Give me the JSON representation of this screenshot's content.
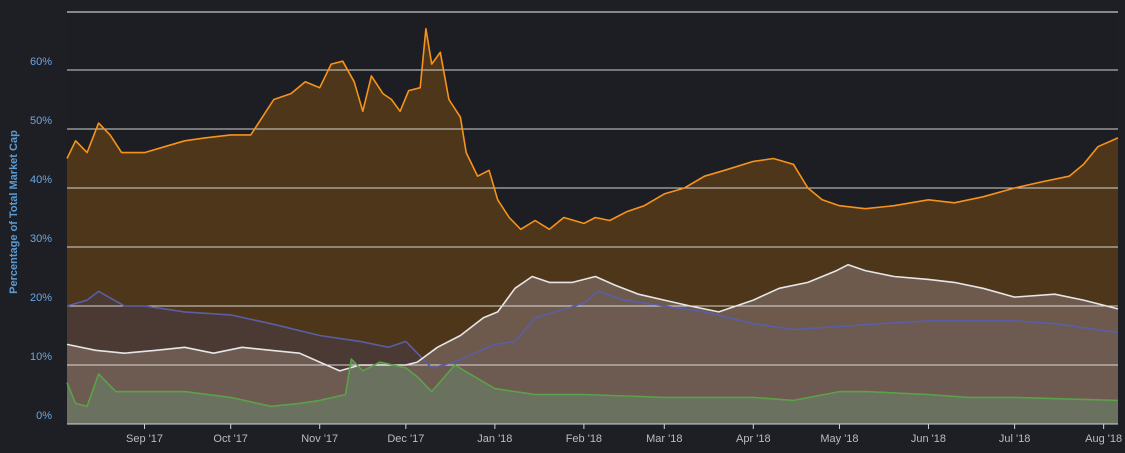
{
  "chart_data": {
    "type": "area",
    "ylabel": "Percentage of Total Market Cap",
    "ylim": [
      0,
      70
    ],
    "y_ticks": [
      "0%",
      "10%",
      "20%",
      "30%",
      "40%",
      "50%",
      "60%"
    ],
    "y_tick_values": [
      0,
      10,
      20,
      30,
      40,
      50,
      60
    ],
    "x_range": [
      "2017-08-05",
      "2018-08-06"
    ],
    "x_ticks": [
      {
        "label": "Sep '17",
        "date": "2017-09-01"
      },
      {
        "label": "Oct '17",
        "date": "2017-10-01"
      },
      {
        "label": "Nov '17",
        "date": "2017-11-01"
      },
      {
        "label": "Dec '17",
        "date": "2017-12-01"
      },
      {
        "label": "Jan '18",
        "date": "2018-01-01"
      },
      {
        "label": "Feb '18",
        "date": "2018-02-01"
      },
      {
        "label": "Mar '18",
        "date": "2018-03-01"
      },
      {
        "label": "Apr '18",
        "date": "2018-04-01"
      },
      {
        "label": "May '18",
        "date": "2018-05-01"
      },
      {
        "label": "Jun '18",
        "date": "2018-06-01"
      },
      {
        "label": "Jul '18",
        "date": "2018-07-01"
      },
      {
        "label": "Aug '18",
        "date": "2018-08-01"
      }
    ],
    "grid": true,
    "legend": "none",
    "series": [
      {
        "color": "#f7931a",
        "fill": "#4e361b",
        "points": [
          [
            "2017-08-05",
            45
          ],
          [
            "2017-08-08",
            48
          ],
          [
            "2017-08-12",
            46
          ],
          [
            "2017-08-16",
            51
          ],
          [
            "2017-08-20",
            49
          ],
          [
            "2017-08-24",
            46
          ],
          [
            "2017-09-01",
            46
          ],
          [
            "2017-09-08",
            47
          ],
          [
            "2017-09-15",
            48
          ],
          [
            "2017-09-22",
            48.5
          ],
          [
            "2017-10-01",
            49
          ],
          [
            "2017-10-08",
            49
          ],
          [
            "2017-10-12",
            52
          ],
          [
            "2017-10-16",
            55
          ],
          [
            "2017-10-22",
            56
          ],
          [
            "2017-10-27",
            58
          ],
          [
            "2017-11-01",
            57
          ],
          [
            "2017-11-05",
            61
          ],
          [
            "2017-11-09",
            61.5
          ],
          [
            "2017-11-13",
            58
          ],
          [
            "2017-11-16",
            53
          ],
          [
            "2017-11-19",
            59
          ],
          [
            "2017-11-23",
            56
          ],
          [
            "2017-11-26",
            55
          ],
          [
            "2017-11-29",
            53
          ],
          [
            "2017-12-02",
            56.5
          ],
          [
            "2017-12-06",
            57
          ],
          [
            "2017-12-08",
            67
          ],
          [
            "2017-12-10",
            61
          ],
          [
            "2017-12-13",
            63
          ],
          [
            "2017-12-16",
            55
          ],
          [
            "2017-12-20",
            52
          ],
          [
            "2017-12-22",
            46
          ],
          [
            "2017-12-26",
            42
          ],
          [
            "2017-12-30",
            43
          ],
          [
            "2018-01-02",
            38
          ],
          [
            "2018-01-06",
            35
          ],
          [
            "2018-01-10",
            33
          ],
          [
            "2018-01-15",
            34.5
          ],
          [
            "2018-01-20",
            33
          ],
          [
            "2018-01-25",
            35
          ],
          [
            "2018-02-01",
            34
          ],
          [
            "2018-02-05",
            35
          ],
          [
            "2018-02-10",
            34.5
          ],
          [
            "2018-02-16",
            36
          ],
          [
            "2018-02-22",
            37
          ],
          [
            "2018-03-01",
            39
          ],
          [
            "2018-03-08",
            40
          ],
          [
            "2018-03-15",
            42
          ],
          [
            "2018-03-22",
            43
          ],
          [
            "2018-04-01",
            44.5
          ],
          [
            "2018-04-08",
            45
          ],
          [
            "2018-04-15",
            44
          ],
          [
            "2018-04-20",
            40
          ],
          [
            "2018-04-25",
            38
          ],
          [
            "2018-05-01",
            37
          ],
          [
            "2018-05-10",
            36.5
          ],
          [
            "2018-05-20",
            37
          ],
          [
            "2018-06-01",
            38
          ],
          [
            "2018-06-10",
            37.5
          ],
          [
            "2018-06-20",
            38.5
          ],
          [
            "2018-07-01",
            40
          ],
          [
            "2018-07-10",
            41
          ],
          [
            "2018-07-20",
            42
          ],
          [
            "2018-07-25",
            44
          ],
          [
            "2018-07-30",
            47
          ],
          [
            "2018-08-06",
            48.5
          ]
        ]
      },
      {
        "color": "#5a5ea6",
        "fill": "#4b3a37",
        "points": [
          [
            "2017-08-05",
            20
          ],
          [
            "2017-08-12",
            21
          ],
          [
            "2017-08-16",
            22.5
          ],
          [
            "2017-08-25",
            20
          ],
          [
            "2017-09-01",
            20
          ],
          [
            "2017-09-15",
            19
          ],
          [
            "2017-10-01",
            18.5
          ],
          [
            "2017-10-15",
            17
          ],
          [
            "2017-11-01",
            15
          ],
          [
            "2017-11-15",
            14
          ],
          [
            "2017-11-25",
            13
          ],
          [
            "2017-12-01",
            14
          ],
          [
            "2017-12-05",
            12
          ],
          [
            "2017-12-10",
            9.5
          ],
          [
            "2017-12-18",
            10.5
          ],
          [
            "2017-12-25",
            12
          ],
          [
            "2018-01-01",
            13.5
          ],
          [
            "2018-01-08",
            14
          ],
          [
            "2018-01-15",
            18
          ],
          [
            "2018-01-22",
            19
          ],
          [
            "2018-02-01",
            20.5
          ],
          [
            "2018-02-06",
            22.5
          ],
          [
            "2018-02-15",
            21
          ],
          [
            "2018-03-01",
            20
          ],
          [
            "2018-03-15",
            19
          ],
          [
            "2018-04-01",
            17
          ],
          [
            "2018-04-15",
            16
          ],
          [
            "2018-05-01",
            16.5
          ],
          [
            "2018-05-15",
            17
          ],
          [
            "2018-06-01",
            17.5
          ],
          [
            "2018-06-15",
            17.5
          ],
          [
            "2018-07-01",
            17.5
          ],
          [
            "2018-07-15",
            17
          ],
          [
            "2018-08-06",
            15.5
          ]
        ]
      },
      {
        "color": "#e6e6e6",
        "fill": "#736056",
        "points": [
          [
            "2017-08-05",
            13.5
          ],
          [
            "2017-08-15",
            12.5
          ],
          [
            "2017-08-25",
            12
          ],
          [
            "2017-09-05",
            12.5
          ],
          [
            "2017-09-15",
            13
          ],
          [
            "2017-09-25",
            12
          ],
          [
            "2017-10-05",
            13
          ],
          [
            "2017-10-15",
            12.5
          ],
          [
            "2017-10-25",
            12
          ],
          [
            "2017-11-01",
            10.5
          ],
          [
            "2017-11-08",
            9
          ],
          [
            "2017-11-15",
            10
          ],
          [
            "2017-11-22",
            10
          ],
          [
            "2017-12-01",
            10
          ],
          [
            "2017-12-05",
            10.5
          ],
          [
            "2017-12-12",
            13
          ],
          [
            "2017-12-20",
            15
          ],
          [
            "2017-12-28",
            18
          ],
          [
            "2018-01-02",
            19
          ],
          [
            "2018-01-08",
            23
          ],
          [
            "2018-01-14",
            25
          ],
          [
            "2018-01-20",
            24
          ],
          [
            "2018-01-28",
            24
          ],
          [
            "2018-02-05",
            25
          ],
          [
            "2018-02-12",
            23.5
          ],
          [
            "2018-02-20",
            22
          ],
          [
            "2018-03-01",
            21
          ],
          [
            "2018-03-10",
            20
          ],
          [
            "2018-03-20",
            19
          ],
          [
            "2018-04-01",
            21
          ],
          [
            "2018-04-10",
            23
          ],
          [
            "2018-04-20",
            24
          ],
          [
            "2018-04-30",
            26
          ],
          [
            "2018-05-04",
            27
          ],
          [
            "2018-05-10",
            26
          ],
          [
            "2018-05-20",
            25
          ],
          [
            "2018-06-01",
            24.5
          ],
          [
            "2018-06-10",
            24
          ],
          [
            "2018-06-20",
            23
          ],
          [
            "2018-07-01",
            21.5
          ],
          [
            "2018-07-15",
            22
          ],
          [
            "2018-07-25",
            21
          ],
          [
            "2018-08-06",
            19.5
          ]
        ]
      },
      {
        "color": "#5ba14a",
        "fill": "#6a7660",
        "points": [
          [
            "2017-08-05",
            7
          ],
          [
            "2017-08-08",
            3.5
          ],
          [
            "2017-08-12",
            3
          ],
          [
            "2017-08-16",
            8.5
          ],
          [
            "2017-08-22",
            5.5
          ],
          [
            "2017-09-01",
            5.5
          ],
          [
            "2017-09-15",
            5.5
          ],
          [
            "2017-10-01",
            4.5
          ],
          [
            "2017-10-15",
            3
          ],
          [
            "2017-10-25",
            3.5
          ],
          [
            "2017-11-01",
            4
          ],
          [
            "2017-11-10",
            5
          ],
          [
            "2017-11-12",
            11
          ],
          [
            "2017-11-16",
            9
          ],
          [
            "2017-11-22",
            10.5
          ],
          [
            "2017-12-01",
            9.5
          ],
          [
            "2017-12-05",
            8
          ],
          [
            "2017-12-10",
            5.5
          ],
          [
            "2017-12-18",
            10
          ],
          [
            "2017-12-25",
            8
          ],
          [
            "2018-01-01",
            6
          ],
          [
            "2018-01-15",
            5
          ],
          [
            "2018-02-01",
            5
          ],
          [
            "2018-03-01",
            4.5
          ],
          [
            "2018-04-01",
            4.5
          ],
          [
            "2018-04-15",
            4
          ],
          [
            "2018-05-01",
            5.5
          ],
          [
            "2018-05-10",
            5.5
          ],
          [
            "2018-06-01",
            5
          ],
          [
            "2018-06-15",
            4.5
          ],
          [
            "2018-07-01",
            4.5
          ],
          [
            "2018-08-06",
            4
          ]
        ]
      }
    ]
  }
}
